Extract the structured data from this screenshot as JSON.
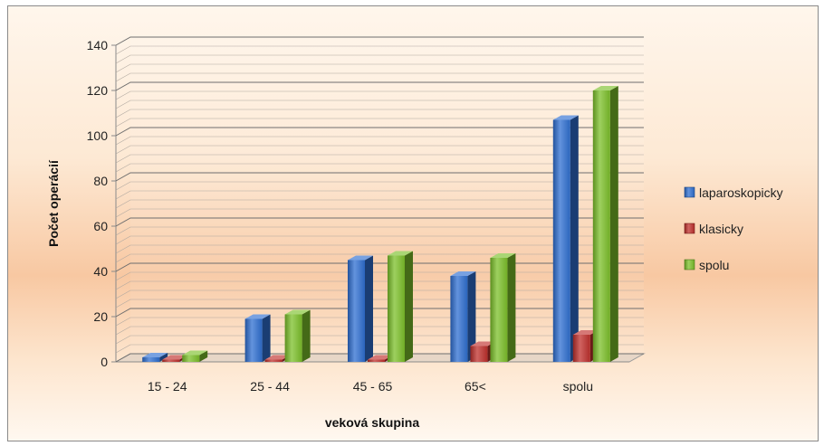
{
  "chart_data": {
    "type": "bar",
    "style": "3d-clustered-column",
    "title": "",
    "xlabel": "veková skupina",
    "ylabel": "Počet operácií",
    "categories": [
      "15 - 24",
      "25 - 44",
      "45 - 65",
      "65<",
      "spolu"
    ],
    "ylim": [
      0,
      140
    ],
    "yticks": [
      0,
      20,
      40,
      60,
      80,
      100,
      120,
      140
    ],
    "grid": true,
    "legend_position": "right",
    "series": [
      {
        "name": "laparoskopicky",
        "values": [
          2,
          19,
          45,
          38,
          107
        ],
        "color": "#2f6fd1"
      },
      {
        "name": "klasicky",
        "values": [
          1,
          1,
          1,
          7,
          12
        ],
        "color": "#c0302c"
      },
      {
        "name": "spolu",
        "values": [
          3,
          21,
          47,
          46,
          120
        ],
        "color": "#7cc02a"
      }
    ]
  }
}
